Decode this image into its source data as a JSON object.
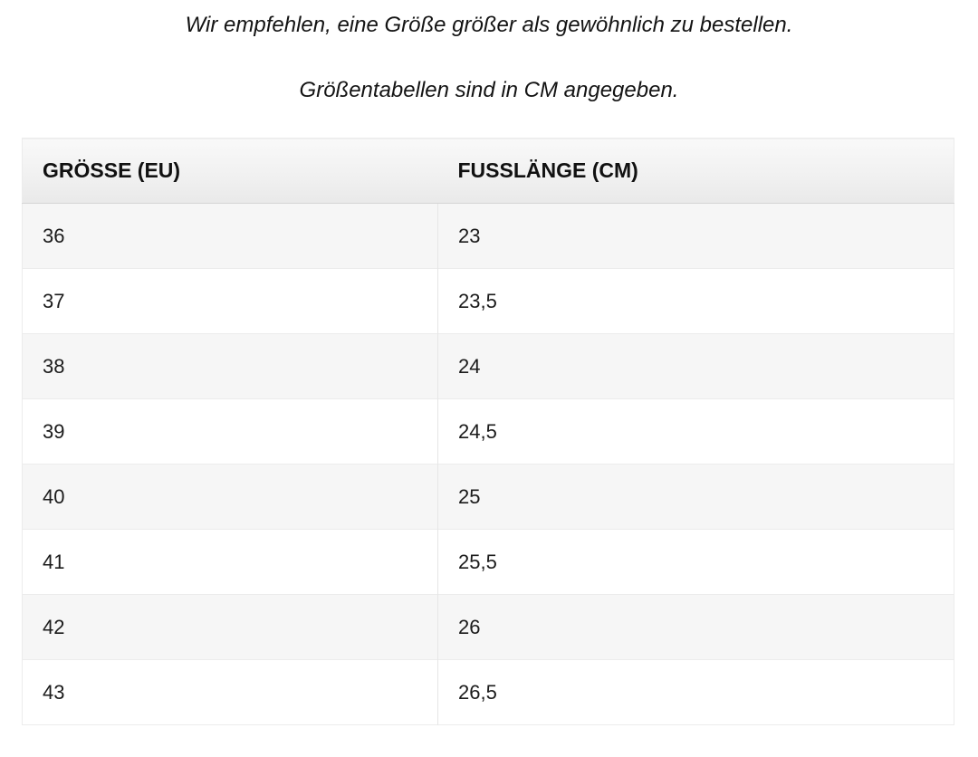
{
  "notes": {
    "recommendation": "Wir empfehlen, eine Größe größer als gewöhnlich zu bestellen.",
    "units": "Größentabellen sind in CM angegeben."
  },
  "table": {
    "columns": [
      "GRÖSSE (EU)",
      "FUSSLÄNGE (CM)"
    ],
    "rows": [
      [
        "36",
        "23"
      ],
      [
        "37",
        "23,5"
      ],
      [
        "38",
        "24"
      ],
      [
        "39",
        "24,5"
      ],
      [
        "40",
        "25"
      ],
      [
        "41",
        "25,5"
      ],
      [
        "42",
        "26"
      ],
      [
        "43",
        "26,5"
      ]
    ]
  },
  "colors": {
    "stripe_row": "#f6f6f6",
    "header_gradient_top": "#f9f9f9",
    "header_gradient_bottom": "#e9e9e9",
    "header_border_bottom": "#d6d6d6",
    "cell_border": "#ececec",
    "column_divider": "#e6e6e6",
    "text": "#1b1b1b"
  }
}
